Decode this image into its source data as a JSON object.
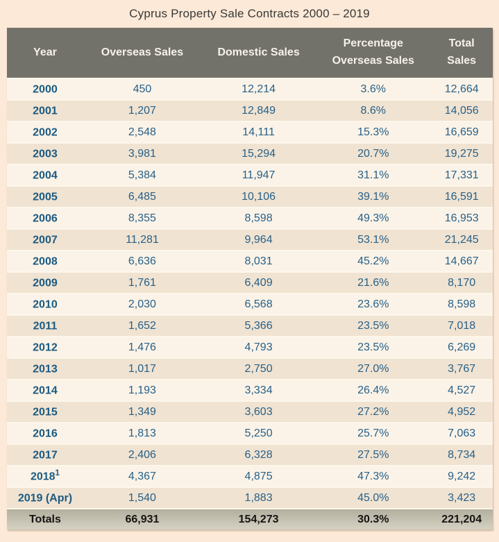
{
  "title": "Cyprus Property Sale Contracts 2000 – 2019",
  "table": {
    "columns": {
      "year": "Year",
      "overseas": "Overseas Sales",
      "domestic": "Domestic Sales",
      "percentage": "Percentage Overseas Sales",
      "total": "Total Sales"
    },
    "rows": [
      {
        "year": "2000",
        "sup": "",
        "overseas": "450",
        "domestic": "12,214",
        "percentage": "3.6%",
        "total": "12,664"
      },
      {
        "year": "2001",
        "sup": "",
        "overseas": "1,207",
        "domestic": "12,849",
        "percentage": "8.6%",
        "total": "14,056"
      },
      {
        "year": "2002",
        "sup": "",
        "overseas": "2,548",
        "domestic": "14,111",
        "percentage": "15.3%",
        "total": "16,659"
      },
      {
        "year": "2003",
        "sup": "",
        "overseas": "3,981",
        "domestic": "15,294",
        "percentage": "20.7%",
        "total": "19,275"
      },
      {
        "year": "2004",
        "sup": "",
        "overseas": "5,384",
        "domestic": "11,947",
        "percentage": "31.1%",
        "total": "17,331"
      },
      {
        "year": "2005",
        "sup": "",
        "overseas": "6,485",
        "domestic": "10,106",
        "percentage": "39.1%",
        "total": "16,591"
      },
      {
        "year": "2006",
        "sup": "",
        "overseas": "8,355",
        "domestic": "8,598",
        "percentage": "49.3%",
        "total": "16,953"
      },
      {
        "year": "2007",
        "sup": "",
        "overseas": "11,281",
        "domestic": "9,964",
        "percentage": "53.1%",
        "total": "21,245"
      },
      {
        "year": "2008",
        "sup": "",
        "overseas": "6,636",
        "domestic": "8,031",
        "percentage": "45.2%",
        "total": "14,667"
      },
      {
        "year": "2009",
        "sup": "",
        "overseas": "1,761",
        "domestic": "6,409",
        "percentage": "21.6%",
        "total": "8,170"
      },
      {
        "year": "2010",
        "sup": "",
        "overseas": "2,030",
        "domestic": "6,568",
        "percentage": "23.6%",
        "total": "8,598"
      },
      {
        "year": "2011",
        "sup": "",
        "overseas": "1,652",
        "domestic": "5,366",
        "percentage": "23.5%",
        "total": "7,018"
      },
      {
        "year": "2012",
        "sup": "",
        "overseas": "1,476",
        "domestic": "4,793",
        "percentage": "23.5%",
        "total": "6,269"
      },
      {
        "year": "2013",
        "sup": "",
        "overseas": "1,017",
        "domestic": "2,750",
        "percentage": "27.0%",
        "total": "3,767"
      },
      {
        "year": "2014",
        "sup": "",
        "overseas": "1,193",
        "domestic": "3,334",
        "percentage": "26.4%",
        "total": "4,527"
      },
      {
        "year": "2015",
        "sup": "",
        "overseas": "1,349",
        "domestic": "3,603",
        "percentage": "27.2%",
        "total": "4,952"
      },
      {
        "year": "2016",
        "sup": "",
        "overseas": "1,813",
        "domestic": "5,250",
        "percentage": "25.7%",
        "total": "7,063"
      },
      {
        "year": "2017",
        "sup": "",
        "overseas": "2,406",
        "domestic": "6,328",
        "percentage": "27.5%",
        "total": "8,734"
      },
      {
        "year": "2018",
        "sup": "1",
        "overseas": "4,367",
        "domestic": "4,875",
        "percentage": "47.3%",
        "total": "9,242"
      },
      {
        "year": "2019 (Apr)",
        "sup": "",
        "overseas": "1,540",
        "domestic": "1,883",
        "percentage": "45.0%",
        "total": "3,423"
      }
    ],
    "totals": {
      "label": "Totals",
      "overseas": "66,931",
      "domestic": "154,273",
      "percentage": "30.3%",
      "total": "221,204"
    }
  },
  "colors": {
    "page_background": "#fce9d8",
    "header_background": "#72716a",
    "header_text": "#f6f2ea",
    "row_light": "#fbf3e7",
    "row_dark": "#f0e3d1",
    "row_separator": "#fdf6eb",
    "year_text": "#1b5a82",
    "value_text": "#276089",
    "totals_background": "#c8c4b4",
    "totals_text": "#151413",
    "title_text": "#3a3834"
  },
  "chart_data": {
    "type": "table",
    "title": "Cyprus Property Sale Contracts 2000 – 2019",
    "columns": [
      "Year",
      "Overseas Sales",
      "Domestic Sales",
      "Percentage Overseas Sales",
      "Total Sales"
    ],
    "rows": [
      [
        "2000",
        450,
        12214,
        "3.6%",
        12664
      ],
      [
        "2001",
        1207,
        12849,
        "8.6%",
        14056
      ],
      [
        "2002",
        2548,
        14111,
        "15.3%",
        16659
      ],
      [
        "2003",
        3981,
        15294,
        "20.7%",
        19275
      ],
      [
        "2004",
        5384,
        11947,
        "31.1%",
        17331
      ],
      [
        "2005",
        6485,
        10106,
        "39.1%",
        16591
      ],
      [
        "2006",
        8355,
        8598,
        "49.3%",
        16953
      ],
      [
        "2007",
        11281,
        9964,
        "53.1%",
        21245
      ],
      [
        "2008",
        6636,
        8031,
        "45.2%",
        14667
      ],
      [
        "2009",
        1761,
        6409,
        "21.6%",
        8170
      ],
      [
        "2010",
        2030,
        6568,
        "23.6%",
        8598
      ],
      [
        "2011",
        1652,
        5366,
        "23.5%",
        7018
      ],
      [
        "2012",
        1476,
        4793,
        "23.5%",
        6269
      ],
      [
        "2013",
        1017,
        2750,
        "27.0%",
        3767
      ],
      [
        "2014",
        1193,
        3334,
        "26.4%",
        4527
      ],
      [
        "2015",
        1349,
        3603,
        "27.2%",
        4952
      ],
      [
        "2016",
        1813,
        5250,
        "25.7%",
        7063
      ],
      [
        "2017",
        2406,
        6328,
        "27.5%",
        8734
      ],
      [
        "2018",
        4367,
        4875,
        "47.3%",
        9242
      ],
      [
        "2019 (Apr)",
        1540,
        1883,
        "45.0%",
        3423
      ]
    ],
    "totals_row": [
      "Totals",
      66931,
      154273,
      "30.3%",
      221204
    ],
    "footnote_marker_on": "2018"
  }
}
